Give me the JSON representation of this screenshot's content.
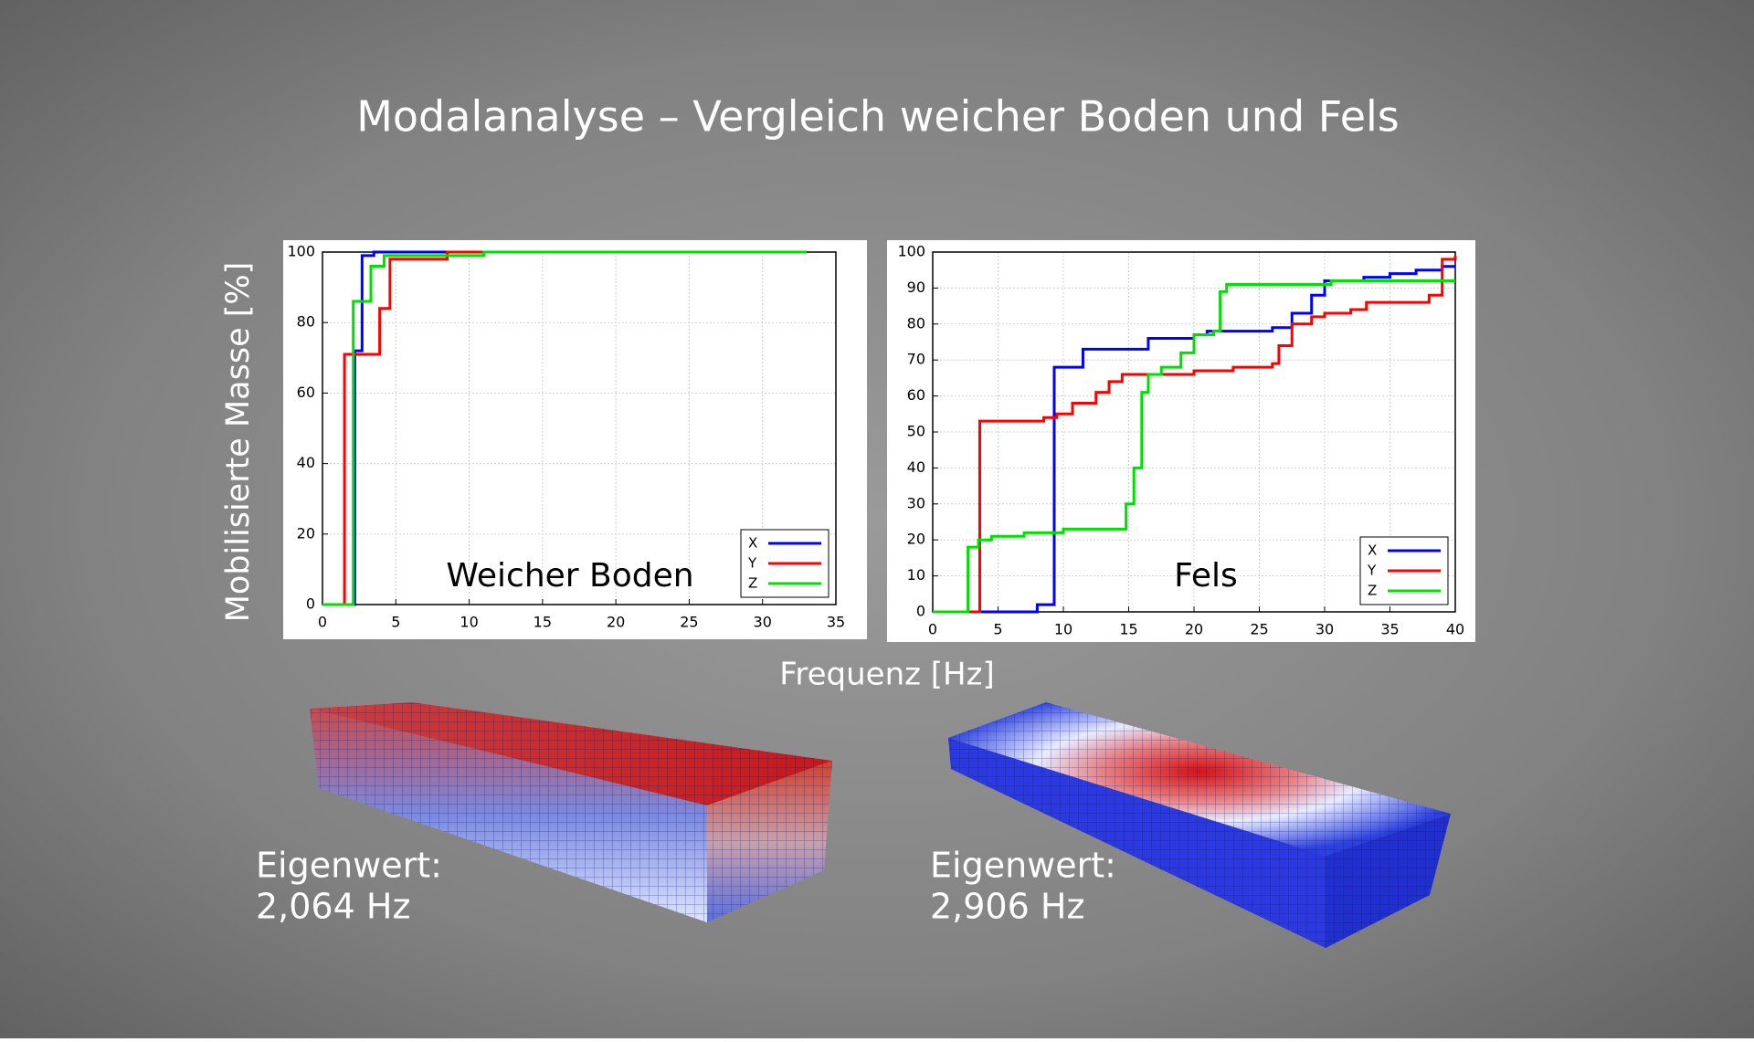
{
  "title": "Modalanalyse – Vergleich weicher Boden und Fels",
  "y_label": "Mobilisierte Masse [%]",
  "x_label": "Frequenz [Hz]",
  "chart_data": [
    {
      "type": "line",
      "step": true,
      "title": "Weicher Boden",
      "xlim": [
        0,
        35
      ],
      "xticks": [
        0,
        5,
        10,
        15,
        20,
        25,
        30,
        35
      ],
      "ylim": [
        0,
        100
      ],
      "yticks": [
        0,
        20,
        40,
        60,
        80,
        100
      ],
      "grid": true,
      "legend": "lower right",
      "series": [
        {
          "name": "X",
          "color": "#0000ff",
          "x": [
            0,
            2.2,
            2.7,
            3.5,
            11
          ],
          "values": [
            0,
            72,
            99,
            100,
            100
          ]
        },
        {
          "name": "Y",
          "color": "#ff0000",
          "x": [
            0,
            1.5,
            3.9,
            4.6,
            8.5,
            11
          ],
          "values": [
            0,
            71,
            84,
            98,
            100,
            100
          ]
        },
        {
          "name": "Z",
          "color": "#00e000",
          "x": [
            0,
            2.1,
            3.3,
            4.2,
            11,
            33
          ],
          "values": [
            0,
            86,
            96,
            99,
            100,
            100
          ]
        }
      ]
    },
    {
      "type": "line",
      "step": true,
      "title": "Fels",
      "xlim": [
        0,
        40
      ],
      "xticks": [
        0,
        5,
        10,
        15,
        20,
        25,
        30,
        35,
        40
      ],
      "ylim": [
        0,
        100
      ],
      "yticks": [
        0,
        10,
        20,
        30,
        40,
        50,
        60,
        70,
        80,
        90,
        100
      ],
      "grid": true,
      "legend": "lower right",
      "series": [
        {
          "name": "X",
          "color": "#0000ff",
          "x": [
            0,
            8,
            9.3,
            11.5,
            16.5,
            20,
            21,
            26,
            27.5,
            29,
            30,
            33,
            35,
            37,
            39,
            40
          ],
          "values": [
            0,
            2,
            68,
            73,
            76,
            77,
            78,
            79,
            83,
            88,
            92,
            93,
            94,
            95,
            96,
            96
          ]
        },
        {
          "name": "Y",
          "color": "#ff0000",
          "x": [
            0,
            3.6,
            8.5,
            9.5,
            10.7,
            12.5,
            13.5,
            14.5,
            20,
            23,
            26,
            26.5,
            27.5,
            29,
            30,
            32,
            33.2,
            38,
            39,
            40
          ],
          "values": [
            0,
            53,
            54,
            55,
            58,
            61,
            64,
            66,
            67,
            68,
            69,
            74,
            80,
            82,
            83,
            84,
            86,
            88,
            98,
            99
          ]
        },
        {
          "name": "Z",
          "color": "#00e000",
          "x": [
            0,
            2.7,
            3.5,
            4.5,
            7,
            10,
            14.8,
            15.4,
            16,
            16.5,
            17.5,
            19,
            20,
            21.5,
            22,
            22.5,
            30.5,
            40
          ],
          "values": [
            0,
            18,
            20,
            21,
            22,
            23,
            30,
            40,
            61,
            66,
            68,
            72,
            77,
            78,
            89,
            91,
            92,
            92
          ]
        }
      ]
    }
  ],
  "models": [
    {
      "label": "Eigenwert:",
      "value": "2,064 Hz"
    },
    {
      "label": "Eigenwert:",
      "value": "2,906 Hz"
    }
  ]
}
